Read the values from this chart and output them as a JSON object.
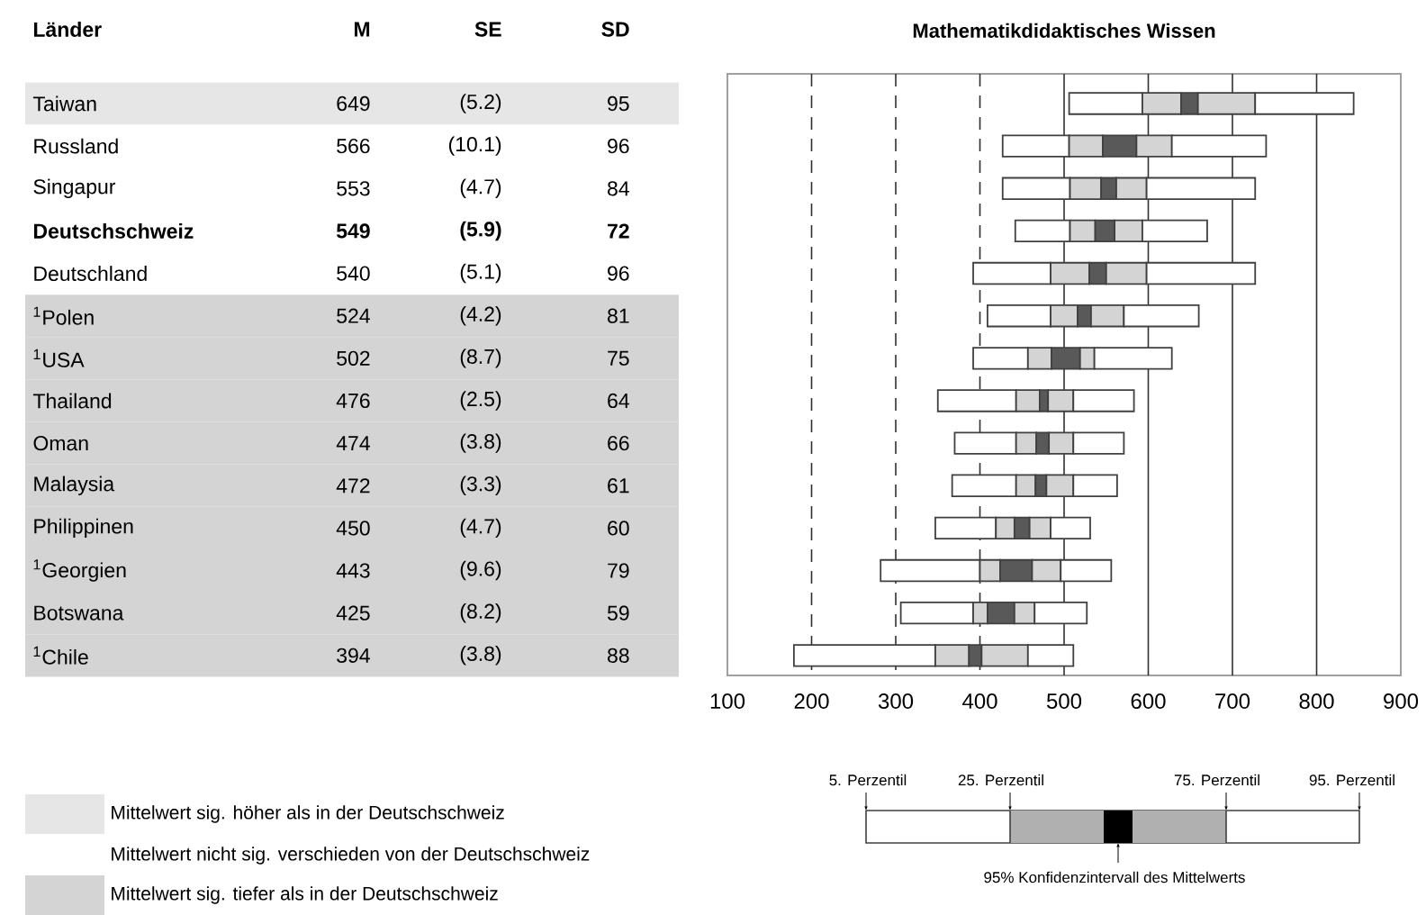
{
  "chart_data": [
    {
      "type": "other",
      "ylabel": "Länder",
      "categories": [
        "Taiwan",
        "Russland",
        "Singapur",
        "**Deutschschweiz**",
        "Deutschland",
        "$^{1}$Polen",
        "$^{1}$USA",
        "Thailand",
        "Oman",
        "Malaysia",
        "Philippinen",
        "$^{1}$Georgien",
        "Botswana",
        "$^{1}$Chile"
      ],
      "data_labels": true,
      "series": [
        {
          "name": "M",
          "colors": [
            "#e6e6e6",
            "#ffffff",
            "#ffffff",
            "#ffffff",
            "#ffffff",
            "#d4d4d4",
            "#d4d4d4",
            "#d4d4d4",
            "#d4d4d4",
            "#d4d4d4",
            "#d4d4d4",
            "#d4d4d4",
            "#d4d4d4",
            "#d4d4d4"
          ],
          "values": [
            649,
            566,
            553,
            549,
            540,
            524,
            502,
            476,
            474,
            472,
            450,
            443,
            425,
            394
          ],
          "value_labels": [
            "649",
            "566",
            "553",
            "**549**",
            "540",
            "524",
            "502",
            "476",
            "474",
            "472",
            "450",
            "443",
            "425",
            "394"
          ]
        },
        {
          "name": "SE",
          "values": [
            5.2,
            10.1,
            4.7,
            5.9,
            5.1,
            4.2,
            8.7,
            2.5,
            3.8,
            3.3,
            4.7,
            9.6,
            8.2,
            3.8
          ],
          "value_labels": [
            "(5.2)",
            "(10.1)",
            "(4.7)",
            "**(5.9)**",
            "(5.1)",
            "(4.2)",
            "(8.7)",
            "(2.5)",
            "(3.8)",
            "(3.3)",
            "(4.7)",
            "(9.6)",
            "(8.2)",
            "(3.8)"
          ]
        },
        {
          "name": "SD",
          "values": [
            95,
            96,
            84,
            72,
            96,
            81,
            75,
            64,
            66,
            61,
            60,
            79,
            59,
            88
          ],
          "value_labels": [
            "95",
            "96",
            "84",
            "**72**",
            "96",
            "81",
            "75",
            "64",
            "66",
            "61",
            "60",
            "79",
            "59",
            "88"
          ]
        }
      ],
      "annotations": [
        "Mittelwert sig. höher als in der Deutschschweiz",
        "Mittelwert nicht sig. verschieden von der Deutschschweiz",
        "Mittelwert sig. tiefer als in der Deutschschweiz"
      ]
    },
    {
      "type": "bar",
      "orientation": "horizontal",
      "title": "Mathematikdidaktisches Wissen",
      "categories": [
        null,
        null,
        null,
        null,
        null,
        null,
        null,
        null,
        null,
        null,
        null,
        null,
        null,
        null
      ],
      "series": [
        {
          "color": "#ffffff",
          "base": [
            506,
            427,
            427,
            442,
            392,
            409,
            392,
            350,
            370,
            367,
            347,
            282,
            306,
            179
          ],
          "values": [
            87,
            79,
            80,
            65,
            92,
            75,
            65,
            93,
            73,
            76,
            72,
            118,
            86,
            168
          ]
        },
        {
          "color": "#d4d4d4",
          "base": [
            593,
            506,
            507,
            507,
            484,
            484,
            457,
            443,
            443,
            443,
            419,
            400,
            392,
            347
          ],
          "values": [
            46,
            40,
            37,
            30,
            46,
            32,
            28,
            28,
            24,
            23,
            22,
            24,
            17,
            40
          ]
        },
        {
          "color": "#595959",
          "base": [
            639,
            546,
            544,
            537,
            530,
            516,
            485,
            471,
            467,
            466,
            441,
            424,
            409,
            387
          ],
          "values": [
            20,
            40,
            18,
            23,
            20,
            16,
            34,
            10,
            15,
            13,
            18,
            38,
            32,
            15
          ]
        },
        {
          "color": "#d4d4d4",
          "base": [
            659,
            586,
            562,
            560,
            550,
            532,
            519,
            481,
            482,
            479,
            459,
            462,
            441,
            402
          ],
          "values": [
            68,
            42,
            36,
            33,
            48,
            39,
            17,
            30,
            29,
            32,
            25,
            34,
            24,
            55
          ]
        },
        {
          "color": "#ffffff",
          "base": [
            727,
            628,
            598,
            593,
            598,
            571,
            536,
            511,
            511,
            511,
            484,
            496,
            465,
            457
          ],
          "values": [
            117,
            112,
            129,
            77,
            129,
            89,
            92,
            72,
            60,
            52,
            47,
            60,
            62,
            54
          ]
        }
      ],
      "xlim": [
        100,
        900
      ],
      "xticks": [
        100,
        200,
        300,
        400,
        500,
        600,
        700,
        800,
        900
      ],
      "tick_labels": "x",
      "ref_lines": [
        {
          "axis": "x",
          "value": 200,
          "line_style": "dashed"
        },
        {
          "axis": "x",
          "value": 300,
          "line_style": "dashed"
        },
        {
          "axis": "x",
          "value": 400,
          "line_style": "dashed"
        },
        {
          "axis": "x",
          "value": 500,
          "line_style": "solid"
        },
        {
          "axis": "x",
          "value": 600,
          "line_style": "solid"
        },
        {
          "axis": "x",
          "value": 700,
          "line_style": "solid"
        },
        {
          "axis": "x",
          "value": 800,
          "line_style": "solid"
        }
      ],
      "annotations": [
        "5. Perzentil",
        "25. Perzentil",
        "75. Perzentil",
        "95. Perzentil",
        "95% Konfidenzintervall des Mittelwerts"
      ]
    }
  ]
}
